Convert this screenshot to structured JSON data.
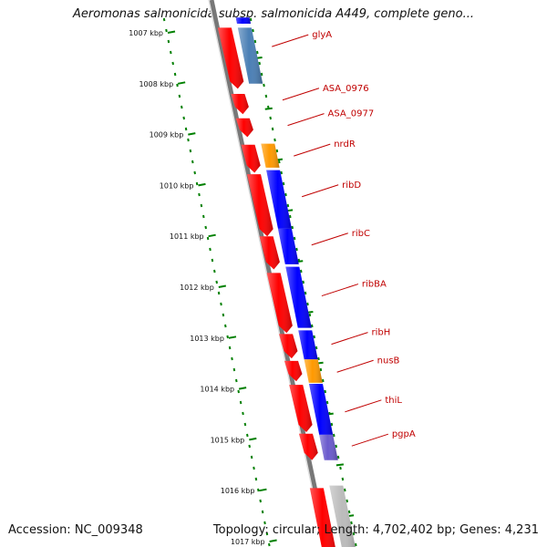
{
  "header": {
    "title": "Aeromonas salmonicida subsp. salmonicida A449, complete geno..."
  },
  "footer": {
    "accession": "Accession: NC_009348",
    "topology": "Topology: circular; Length: 4,702,402 bp; Genes: 4,231"
  },
  "colors": {
    "forward_cds": "#ff0000",
    "reverse_cds": "#0000ff",
    "rna_gene": "#ff9900",
    "other_gene": "#4a7fb5",
    "gray_feature": "#bbbbbb",
    "tick": "#008000",
    "backbone": "#777777",
    "label": "#c00000"
  },
  "axis": {
    "unit": "kbp",
    "ticks": [
      {
        "kbp": 1007,
        "label": "1007 kbp"
      },
      {
        "kbp": 1008,
        "label": "1008 kbp"
      },
      {
        "kbp": 1009,
        "label": "1009 kbp"
      },
      {
        "kbp": 1010,
        "label": "1010 kbp"
      },
      {
        "kbp": 1011,
        "label": "1011 kbp"
      },
      {
        "kbp": 1012,
        "label": "1012 kbp"
      },
      {
        "kbp": 1013,
        "label": "1013 kbp"
      },
      {
        "kbp": 1014,
        "label": "1014 kbp"
      },
      {
        "kbp": 1015,
        "label": "1015 kbp"
      },
      {
        "kbp": 1016,
        "label": "1016 kbp"
      },
      {
        "kbp": 1017,
        "label": "1017 kbp"
      }
    ]
  },
  "features": [
    {
      "lane": 2,
      "start": 1006.7,
      "end": 1006.82,
      "color": "#0000ff",
      "arrow": false
    },
    {
      "lane": 1,
      "start": 1006.9,
      "end": 1008.1,
      "color": "#ff0000",
      "arrow": true
    },
    {
      "lane": 2,
      "start": 1006.9,
      "end": 1008.0,
      "color": "#4a7fb5",
      "arrow": false
    },
    {
      "lane": 1,
      "start": 1008.2,
      "end": 1008.6,
      "color": "#ff0000",
      "arrow": true
    },
    {
      "lane": 1,
      "start": 1008.68,
      "end": 1009.05,
      "color": "#ff0000",
      "arrow": true
    },
    {
      "lane": 1,
      "start": 1009.2,
      "end": 1009.75,
      "color": "#ff0000",
      "arrow": true
    },
    {
      "lane": 2,
      "start": 1009.18,
      "end": 1009.65,
      "color": "#ff9900",
      "arrow": false
    },
    {
      "lane": 1,
      "start": 1009.78,
      "end": 1011.0,
      "color": "#ff0000",
      "arrow": true
    },
    {
      "lane": 2,
      "start": 1009.7,
      "end": 1010.85,
      "color": "#0000ff",
      "arrow": false
    },
    {
      "lane": 1,
      "start": 1011.0,
      "end": 1011.65,
      "color": "#ff0000",
      "arrow": true
    },
    {
      "lane": 2,
      "start": 1010.85,
      "end": 1011.55,
      "color": "#0000ff",
      "arrow": false
    },
    {
      "lane": 1,
      "start": 1011.72,
      "end": 1012.9,
      "color": "#ff0000",
      "arrow": true
    },
    {
      "lane": 2,
      "start": 1011.6,
      "end": 1012.8,
      "color": "#0000ff",
      "arrow": false
    },
    {
      "lane": 1,
      "start": 1012.92,
      "end": 1013.4,
      "color": "#ff0000",
      "arrow": true
    },
    {
      "lane": 2,
      "start": 1012.85,
      "end": 1013.42,
      "color": "#0000ff",
      "arrow": false
    },
    {
      "lane": 1,
      "start": 1013.45,
      "end": 1013.85,
      "color": "#ff0000",
      "arrow": true
    },
    {
      "lane": 2,
      "start": 1013.42,
      "end": 1013.88,
      "color": "#ff9900",
      "arrow": false
    },
    {
      "lane": 1,
      "start": 1013.92,
      "end": 1014.85,
      "color": "#ff0000",
      "arrow": true
    },
    {
      "lane": 2,
      "start": 1013.9,
      "end": 1014.9,
      "color": "#0000ff",
      "arrow": false
    },
    {
      "lane": 1,
      "start": 1014.88,
      "end": 1015.4,
      "color": "#ff0000",
      "arrow": true
    },
    {
      "lane": 2,
      "start": 1014.9,
      "end": 1015.4,
      "color": "#6a5acd",
      "arrow": false
    },
    {
      "lane": 1,
      "start": 1015.95,
      "end": 1017.3,
      "color": "#ff0000",
      "arrow": false
    },
    {
      "lane": 2,
      "start": 1015.9,
      "end": 1017.3,
      "color": "#bbbbbb",
      "arrow": false
    }
  ],
  "gene_labels": [
    {
      "name": "glyA",
      "kbp": 1007.2
    },
    {
      "name": "ASA_0976",
      "kbp": 1008.25
    },
    {
      "name": "ASA_0977",
      "kbp": 1008.75
    },
    {
      "name": "nrdR",
      "kbp": 1009.35
    },
    {
      "name": "ribD",
      "kbp": 1010.15
    },
    {
      "name": "ribC",
      "kbp": 1011.1
    },
    {
      "name": "ribBA",
      "kbp": 1012.1
    },
    {
      "name": "ribH",
      "kbp": 1013.05
    },
    {
      "name": "nusB",
      "kbp": 1013.6
    },
    {
      "name": "thiL",
      "kbp": 1014.38
    },
    {
      "name": "pgpA",
      "kbp": 1015.05
    }
  ]
}
